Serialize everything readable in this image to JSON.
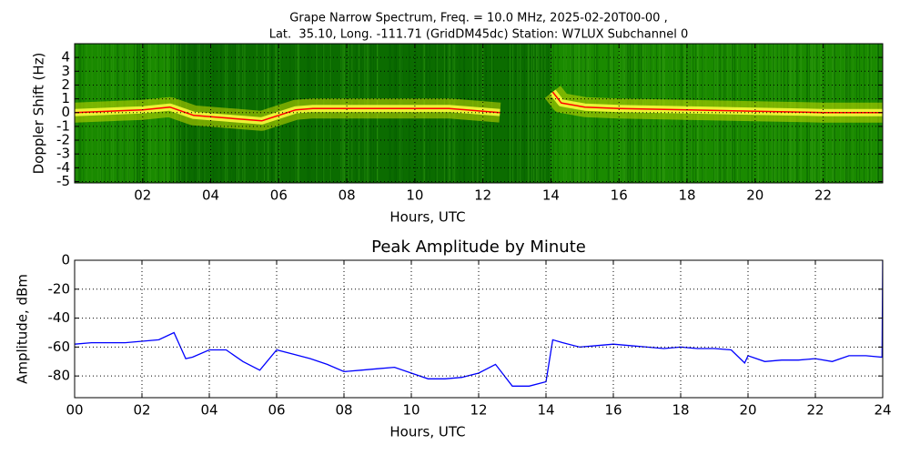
{
  "chart_data": [
    {
      "type": "spectrogram",
      "title": "Grape Narrow Spectrum, Freq. = 10.0 MHz, 2025-02-20T00-00 ,",
      "subtitle": "Lat.  35.10, Long. -111.71 (GridDM45dc) Station: W7LUX Subchannel 0",
      "xlabel": "Hours, UTC",
      "ylabel": "Doppler Shift (Hz)",
      "x": [
        0,
        1,
        2,
        2.8,
        3.5,
        4.5,
        5.5,
        6.5,
        7,
        8,
        9,
        10,
        11,
        12,
        12.5,
        13,
        14.05,
        14.3,
        15,
        16,
        18,
        20,
        22,
        23.75
      ],
      "values": [
        0,
        0.1,
        0.2,
        0.4,
        -0.2,
        -0.4,
        -0.6,
        0.2,
        0.3,
        0.3,
        0.3,
        0.3,
        0.3,
        0.1,
        0,
        null,
        1.5,
        0.7,
        0.4,
        0.3,
        0.2,
        0.1,
        0,
        0
      ],
      "color": "#ff0000",
      "xlim": [
        0,
        23.75
      ],
      "ylim": [
        -5.1,
        5
      ],
      "xticks": [
        {
          "value": 2,
          "label": "02"
        },
        {
          "value": 4,
          "label": "04"
        },
        {
          "value": 6,
          "label": "06"
        },
        {
          "value": 8,
          "label": "08"
        },
        {
          "value": 10,
          "label": "10"
        },
        {
          "value": 12,
          "label": "12"
        },
        {
          "value": 14,
          "label": "14"
        },
        {
          "value": 16,
          "label": "16"
        },
        {
          "value": 18,
          "label": "18"
        },
        {
          "value": 20,
          "label": "20"
        },
        {
          "value": 22,
          "label": "22"
        }
      ],
      "yticks": [
        -5,
        -4,
        -3,
        -2,
        -1,
        0,
        1,
        2,
        3,
        4
      ],
      "grid": true
    },
    {
      "type": "line",
      "title": "Peak Amplitude by Minute",
      "xlabel": "Hours, UTC",
      "ylabel": "Amplitude, dBm",
      "x": [
        0,
        0.5,
        1,
        1.5,
        2,
        2.5,
        2.95,
        3.3,
        3.5,
        4,
        4.5,
        5,
        5.5,
        6,
        6.5,
        7,
        7.5,
        8,
        8.5,
        9,
        9.5,
        10,
        10.5,
        11,
        11.5,
        12,
        12.5,
        13,
        13.5,
        14,
        14.2,
        14.5,
        15,
        15.5,
        16,
        16.5,
        17,
        17.5,
        18,
        18.5,
        19,
        19.5,
        19.9,
        20,
        20.5,
        21,
        21.5,
        22,
        22.5,
        23,
        23.5,
        23.98,
        24
      ],
      "values": [
        -58,
        -57,
        -57,
        -57,
        -56,
        -55,
        -50,
        -68,
        -67,
        -62,
        -62,
        -70,
        -76,
        -62,
        -65,
        -68,
        -72,
        -77,
        -76,
        -75,
        -74,
        -78,
        -82,
        -82,
        -81,
        -78,
        -72,
        -87,
        -87,
        -84,
        -55,
        -57,
        -60,
        -59,
        -58,
        -59,
        -60,
        -61,
        -60,
        -61,
        -61,
        -62,
        -71,
        -66,
        -70,
        -69,
        -69,
        -68,
        -70,
        -66,
        -66,
        -67,
        0
      ],
      "color": "#0000ff",
      "xlim": [
        0,
        24
      ],
      "ylim": [
        -95,
        0
      ],
      "xticks": [
        {
          "value": 0,
          "label": "00"
        },
        {
          "value": 2,
          "label": "02"
        },
        {
          "value": 4,
          "label": "04"
        },
        {
          "value": 6,
          "label": "06"
        },
        {
          "value": 8,
          "label": "08"
        },
        {
          "value": 10,
          "label": "10"
        },
        {
          "value": 12,
          "label": "12"
        },
        {
          "value": 14,
          "label": "14"
        },
        {
          "value": 16,
          "label": "16"
        },
        {
          "value": 18,
          "label": "18"
        },
        {
          "value": 20,
          "label": "20"
        },
        {
          "value": 22,
          "label": "22"
        },
        {
          "value": 24,
          "label": "24"
        }
      ],
      "yticks": [
        -80,
        -60,
        -40,
        -20,
        0
      ],
      "grid": true
    }
  ]
}
